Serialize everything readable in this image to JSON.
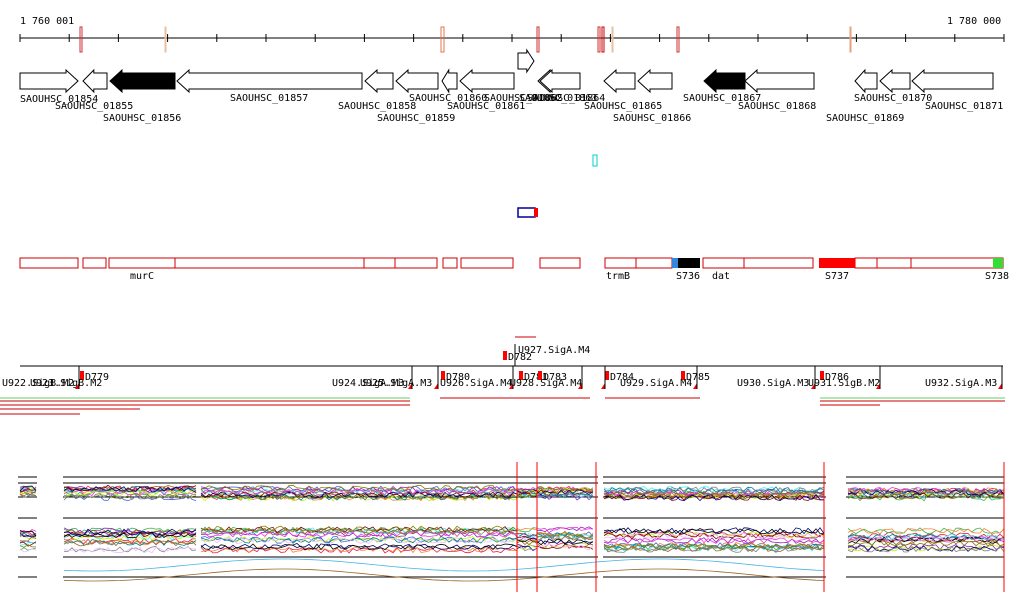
{
  "ruler": {
    "start_label": "1 760 001",
    "end_label": "1 780 000"
  },
  "colors": {
    "gene_outline": "#000000",
    "gene_fill_highlight": "#000000",
    "segment_outline": "#cc0000",
    "tick_mark_red": "#cc3333",
    "tick_mark_orange": "#e6734d",
    "cyan_marker": "#00cccc",
    "blue_marker": "#000099",
    "s736_blue": "#3388dd",
    "s737_red": "#ff0000",
    "s738_green": "#33dd33",
    "promoter_green": "#66cc66",
    "signal_axis": "#000000"
  },
  "genes": [
    {
      "label": "SAOUHSC_01854",
      "dir": "right",
      "filled": false
    },
    {
      "label": "SAOUHSC_01855",
      "dir": "left",
      "filled": false
    },
    {
      "label": "SAOUHSC_01856",
      "dir": "left",
      "filled": true
    },
    {
      "label": "SAOUHSC_01857",
      "dir": "left",
      "filled": false
    },
    {
      "label": "SAOUHSC_01858",
      "dir": "left",
      "filled": false
    },
    {
      "label": "SAOUHSC_01859",
      "dir": "left",
      "filled": false
    },
    {
      "label": "SAOUHSC_01860",
      "dir": "left",
      "filled": false
    },
    {
      "label": "SAOUHSC_01861",
      "dir": "left",
      "filled": false
    },
    {
      "label": "SAOUHSC_01862",
      "dir": "right",
      "filled": false
    },
    {
      "label": "SAOUHSC_01863",
      "dir": "left",
      "filled": false
    },
    {
      "label": "SAOUHSC_01864",
      "dir": "left",
      "filled": false
    },
    {
      "label": "SAOUHSC_01865",
      "dir": "left",
      "filled": false
    },
    {
      "label": "SAOUHSC_01866",
      "dir": "left",
      "filled": false
    },
    {
      "label": "SAOUHSC_01867",
      "dir": "left",
      "filled": true
    },
    {
      "label": "SAOUHSC_01868",
      "dir": "left",
      "filled": false
    },
    {
      "label": "SAOUHSC_01869",
      "dir": "left",
      "filled": false
    },
    {
      "label": "SAOUHSC_01870",
      "dir": "left",
      "filled": false
    },
    {
      "label": "SAOUHSC_01871",
      "dir": "left",
      "filled": false
    }
  ],
  "segment_labels": {
    "murC": "murC",
    "trmB": "trmB",
    "s736": "S736",
    "dat": "dat",
    "s737": "S737",
    "s738": "S738"
  },
  "features": [
    "D779",
    "D780",
    "D781",
    "D782",
    "D783",
    "D784",
    "D785",
    "D786"
  ],
  "promoters": [
    "U922.SigB.M2",
    "U923.SigB.M2",
    "U924.SigA.M3",
    "U925.SigA.M3",
    "U926.SigA.M4",
    "U927.SigA.M4",
    "U928.SigA.M4",
    "U929.SigA.M4",
    "U930.SigA.M3",
    "U931.SigB.M2",
    "U932.SigA.M3"
  ]
}
